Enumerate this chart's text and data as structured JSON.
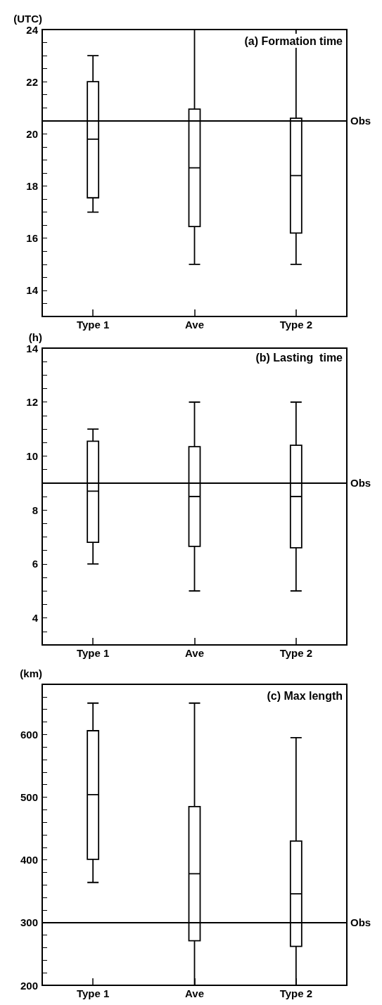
{
  "chart_data": [
    {
      "type": "box",
      "title": "(a) Formation time",
      "ylabel": "(UTC)",
      "categories": [
        "Type 1",
        "Ave",
        "Type 2"
      ],
      "boxes": [
        {
          "low": 17,
          "q1": 17.55,
          "median": 19.8,
          "q3": 22,
          "high": 23
        },
        {
          "low": 15,
          "q1": 16.45,
          "median": 18.7,
          "q3": 20.95,
          "high": 24
        },
        {
          "low": 15,
          "q1": 16.2,
          "median": 18.4,
          "q3": 20.6,
          "high": 24
        }
      ],
      "ylim": [
        13,
        24
      ],
      "yticks": [
        {
          "value": 13.5,
          "label": null
        },
        14,
        {
          "value": 14.5,
          "label": null
        },
        {
          "value": 15,
          "label": null
        },
        {
          "value": 15.5,
          "label": null
        },
        16,
        {
          "value": 16.5,
          "label": null
        },
        {
          "value": 17,
          "label": null
        },
        {
          "value": 17.5,
          "label": null
        },
        18,
        {
          "value": 18.5,
          "label": null
        },
        {
          "value": 19,
          "label": null
        },
        {
          "value": 19.5,
          "label": null
        },
        20,
        {
          "value": 20.5,
          "label": null
        },
        {
          "value": 21,
          "label": null
        },
        {
          "value": 21.5,
          "label": null
        },
        22,
        {
          "value": 22.5,
          "label": null
        },
        {
          "value": 23,
          "label": null
        },
        {
          "value": 23.5,
          "label": null
        },
        24
      ],
      "ref_lines": [
        {
          "axis": "y",
          "value": 20.5,
          "label": "Obs"
        }
      ]
    },
    {
      "type": "box",
      "title": "(b) Lasting  time",
      "ylabel": "(h)",
      "categories": [
        "Type 1",
        "Ave",
        "Type 2"
      ],
      "boxes": [
        {
          "low": 6,
          "q1": 6.8,
          "median": 8.7,
          "q3": 10.55,
          "high": 11
        },
        {
          "low": 5,
          "q1": 6.65,
          "median": 8.5,
          "q3": 10.35,
          "high": 12
        },
        {
          "low": 5,
          "q1": 6.6,
          "median": 8.5,
          "q3": 10.4,
          "high": 12
        }
      ],
      "ylim": [
        3,
        14
      ],
      "yticks": [
        {
          "value": 3.5,
          "label": null
        },
        4,
        {
          "value": 4.5,
          "label": null
        },
        {
          "value": 5,
          "label": null
        },
        {
          "value": 5.5,
          "label": null
        },
        6,
        {
          "value": 6.5,
          "label": null
        },
        {
          "value": 7,
          "label": null
        },
        {
          "value": 7.5,
          "label": null
        },
        8,
        {
          "value": 8.5,
          "label": null
        },
        {
          "value": 9,
          "label": null
        },
        {
          "value": 9.5,
          "label": null
        },
        10,
        {
          "value": 10.5,
          "label": null
        },
        {
          "value": 11,
          "label": null
        },
        {
          "value": 11.5,
          "label": null
        },
        12,
        {
          "value": 12.5,
          "label": null
        },
        {
          "value": 13,
          "label": null
        },
        {
          "value": 13.5,
          "label": null
        },
        14
      ],
      "ref_lines": [
        {
          "axis": "y",
          "value": 9,
          "label": "Obs"
        }
      ]
    },
    {
      "type": "box",
      "title": "(c) Max length",
      "ylabel": "(km)",
      "categories": [
        "Type 1",
        "Ave",
        "Type 2"
      ],
      "boxes": [
        {
          "low": 364,
          "q1": 401,
          "median": 504,
          "q3": 606,
          "high": 650
        },
        {
          "low": 200,
          "q1": 271,
          "median": 378,
          "q3": 485,
          "high": 650
        },
        {
          "low": 200,
          "q1": 262,
          "median": 346,
          "q3": 430,
          "high": 595
        }
      ],
      "ylim": [
        200,
        680
      ],
      "yticks": [
        200,
        {
          "value": 220,
          "label": null
        },
        {
          "value": 240,
          "label": null
        },
        {
          "value": 260,
          "label": null
        },
        {
          "value": 280,
          "label": null
        },
        300,
        {
          "value": 320,
          "label": null
        },
        {
          "value": 340,
          "label": null
        },
        {
          "value": 360,
          "label": null
        },
        {
          "value": 380,
          "label": null
        },
        400,
        {
          "value": 420,
          "label": null
        },
        {
          "value": 440,
          "label": null
        },
        {
          "value": 460,
          "label": null
        },
        {
          "value": 480,
          "label": null
        },
        500,
        {
          "value": 520,
          "label": null
        },
        {
          "value": 540,
          "label": null
        },
        {
          "value": 560,
          "label": null
        },
        {
          "value": 580,
          "label": null
        },
        600,
        {
          "value": 620,
          "label": null
        },
        {
          "value": 640,
          "label": null
        },
        {
          "value": 660,
          "label": null
        }
      ],
      "ref_lines": [
        {
          "axis": "y",
          "value": 300,
          "label": "Obs"
        }
      ]
    }
  ]
}
